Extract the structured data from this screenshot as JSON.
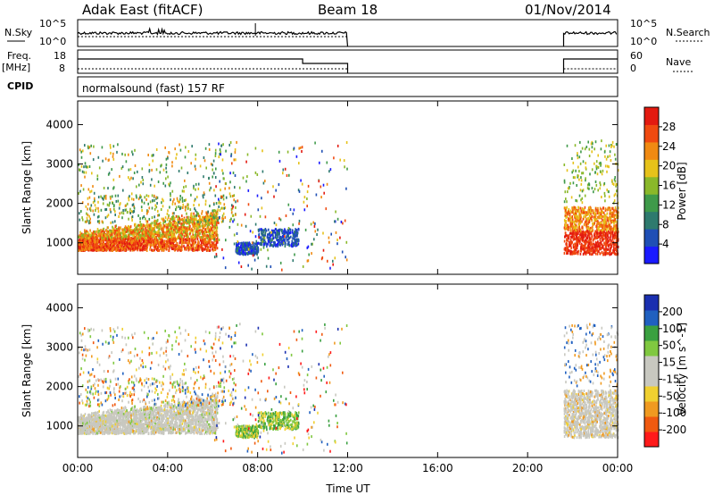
{
  "header": {
    "station": "Adak East (fitACF)",
    "beam": "Beam 18",
    "date": "01/Nov/2014"
  },
  "panel_labels": {
    "nsky": "N.Sky",
    "nsearch": "N.Search",
    "freq": "Freq.",
    "freq_unit": "[MHz]",
    "nave": "Nave",
    "cpid": "CPID",
    "program": "normalsound (fast) 157 RF",
    "nsky_ticks": [
      "10^5",
      "10^0"
    ],
    "nsearch_ticks": [
      "10^5",
      "10^0"
    ],
    "freq_ticks": [
      "18",
      "8"
    ],
    "nave_ticks": [
      "60",
      "0"
    ]
  },
  "colors": {
    "power_scale": [
      "#1a1aff",
      "#1f4fb5",
      "#2e7a6e",
      "#3f9a4a",
      "#8ab82a",
      "#e6c21a",
      "#f08a12",
      "#f04a10",
      "#e31a10"
    ],
    "velocity_scale": [
      "#ff1a1a",
      "#f05a10",
      "#f09a20",
      "#f0d030",
      "#c8c8c0",
      "#c8c8c0",
      "#80c840",
      "#3aa040",
      "#2060c0",
      "#1a2fb0"
    ]
  },
  "chart_data": [
    {
      "type": "heatmap",
      "name": "power",
      "ylabel": "Slant Range [km]",
      "y_ticks": [
        "1000",
        "2000",
        "3000",
        "4000"
      ],
      "ylim": [
        200,
        4600
      ],
      "xlim": [
        0,
        24
      ],
      "colorbar": {
        "label": "Power [dB]",
        "ticks": [
          "4",
          "8",
          "12",
          "16",
          "20",
          "24",
          "28"
        ],
        "range": [
          0,
          32
        ]
      },
      "data_gaps_hours": [
        [
          12.0,
          21.6
        ]
      ]
    },
    {
      "type": "heatmap",
      "name": "velocity",
      "ylabel": "Slant Range [km]",
      "y_ticks": [
        "1000",
        "2000",
        "3000",
        "4000"
      ],
      "ylim": [
        200,
        4600
      ],
      "xlim": [
        0,
        24
      ],
      "colorbar": {
        "label": "Velocity [m s^-1]",
        "ticks": [
          "200",
          "100",
          "50",
          "15",
          "-15",
          "-50",
          "-100",
          "-200"
        ]
      },
      "data_gaps_hours": [
        [
          12.0,
          21.6
        ]
      ]
    }
  ],
  "x_axis": {
    "label": "Time UT",
    "ticks": [
      "00:00",
      "04:00",
      "08:00",
      "12:00",
      "16:00",
      "20:00",
      "00:00"
    ]
  }
}
